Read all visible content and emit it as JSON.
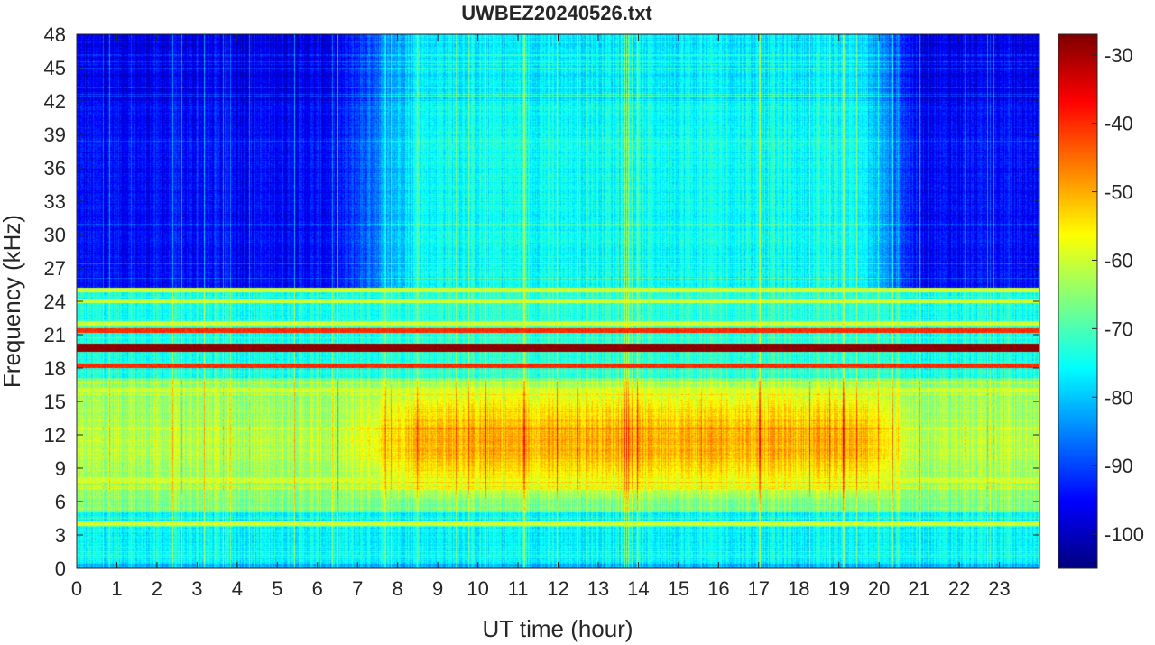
{
  "chart_data": {
    "type": "heatmap",
    "title": "UWBEZ20240526.txt",
    "xlabel": "UT time (hour)",
    "ylabel": "Frequency (kHz)",
    "xlim": [
      0,
      24
    ],
    "ylim": [
      0,
      48
    ],
    "x_ticks": [
      0,
      1,
      2,
      3,
      4,
      5,
      6,
      7,
      8,
      9,
      10,
      11,
      12,
      13,
      14,
      15,
      16,
      17,
      18,
      19,
      20,
      21,
      22,
      23
    ],
    "y_ticks": [
      0,
      3,
      6,
      9,
      12,
      15,
      18,
      21,
      24,
      27,
      30,
      33,
      36,
      39,
      42,
      45,
      48
    ],
    "colorbar": {
      "colormap": "jet",
      "range": [
        -105,
        -27
      ],
      "ticks": [
        -100,
        -90,
        -80,
        -70,
        -60,
        -50,
        -40,
        -30
      ]
    },
    "features": {
      "strong_lines_khz": [
        19.8,
        21.4,
        18.2
      ],
      "moderate_lines_khz": [
        25.0,
        24.0,
        22.0,
        16.0,
        8.0,
        4.0
      ],
      "daytime_enhancement": {
        "start_hour": 7.5,
        "end_hour": 20.5,
        "freq_range_khz": [
          6,
          17
        ],
        "peak_level": -50
      },
      "quiet_night_levels": {
        "high_freq": -95,
        "mid_freq": -80
      }
    },
    "grid": false
  }
}
